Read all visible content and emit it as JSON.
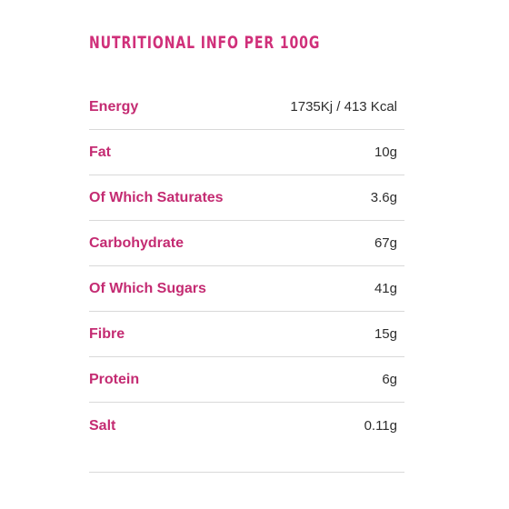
{
  "title": "NUTRITIONAL INFO PER 100G",
  "colors": {
    "accent": "#c42b72",
    "value_text": "#2d2d2d",
    "divider": "#d9d9d9"
  },
  "nutrition": [
    {
      "label": "Energy",
      "value": "1735Kj / 413 Kcal"
    },
    {
      "label": "Fat",
      "value": "10g"
    },
    {
      "label": "Of Which Saturates",
      "value": "3.6g"
    },
    {
      "label": "Carbohydrate",
      "value": "67g"
    },
    {
      "label": "Of Which Sugars",
      "value": "41g"
    },
    {
      "label": "Fibre",
      "value": "15g"
    },
    {
      "label": "Protein",
      "value": "6g"
    },
    {
      "label": "Salt",
      "value": "0.11g"
    }
  ]
}
